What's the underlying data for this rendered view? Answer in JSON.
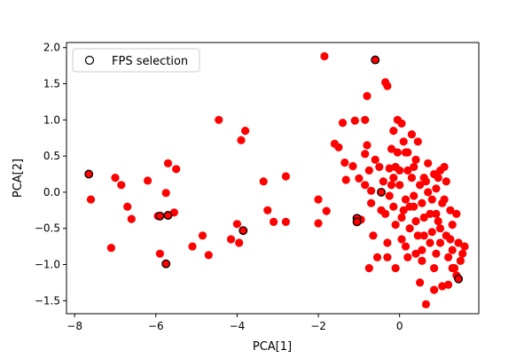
{
  "chart_data": {
    "type": "scatter",
    "title": "",
    "xlabel": "PCA[1]",
    "ylabel": "PCA[2]",
    "xlim": [
      -8.2,
      1.95
    ],
    "ylim": [
      -1.68,
      2.07
    ],
    "xticks": [
      -8,
      -6,
      -4,
      -2,
      0
    ],
    "xtick_labels": [
      "−8",
      "−6",
      "−4",
      "−2",
      "0"
    ],
    "yticks": [
      -1.5,
      -1.0,
      -0.5,
      0.0,
      0.5,
      1.0,
      1.5,
      2.0
    ],
    "ytick_labels": [
      "−1.5",
      "−1.0",
      "−0.5",
      "0.0",
      "0.5",
      "1.0",
      "1.5",
      "2.0"
    ],
    "grid": false,
    "legend": {
      "position": "upper-left"
    },
    "series": [
      {
        "marker": "filled-circle",
        "color": "#ff0000",
        "points": [
          [
            -7.6,
            -0.1
          ],
          [
            -7.0,
            0.2
          ],
          [
            -6.85,
            0.1
          ],
          [
            -6.7,
            -0.2
          ],
          [
            -6.6,
            -0.37
          ],
          [
            -7.1,
            -0.77
          ],
          [
            -6.2,
            0.16
          ],
          [
            -5.95,
            -0.33
          ],
          [
            -5.75,
            -0.01
          ],
          [
            -5.7,
            0.4
          ],
          [
            -5.5,
            0.32
          ],
          [
            -5.55,
            -0.28
          ],
          [
            -5.9,
            -0.85
          ],
          [
            -5.1,
            -0.75
          ],
          [
            -4.85,
            -0.6
          ],
          [
            -4.7,
            -0.87
          ],
          [
            -4.45,
            1.0
          ],
          [
            -4.15,
            -0.65
          ],
          [
            -3.95,
            -0.7
          ],
          [
            -3.9,
            0.72
          ],
          [
            -3.8,
            0.85
          ],
          [
            -4.0,
            -0.44
          ],
          [
            -3.35,
            0.15
          ],
          [
            -3.25,
            -0.25
          ],
          [
            -3.1,
            -0.41
          ],
          [
            -2.8,
            -0.41
          ],
          [
            -2.8,
            0.22
          ],
          [
            -2.0,
            -0.1
          ],
          [
            -2.0,
            -0.43
          ],
          [
            -1.85,
            1.88
          ],
          [
            -1.8,
            -0.26
          ],
          [
            -1.6,
            0.67
          ],
          [
            -1.5,
            0.62
          ],
          [
            -1.4,
            0.96
          ],
          [
            -1.35,
            0.41
          ],
          [
            -1.32,
            0.17
          ],
          [
            -1.15,
            0.36
          ],
          [
            -1.1,
            0.99
          ],
          [
            -1.0,
            0.19
          ],
          [
            -0.95,
            -0.38
          ],
          [
            -0.85,
            0.1
          ],
          [
            -0.85,
            0.53
          ],
          [
            -0.85,
            1.0
          ],
          [
            -0.8,
            0.65
          ],
          [
            -0.75,
            0.3
          ],
          [
            -0.7,
            0.02
          ],
          [
            -0.6,
            0.45
          ],
          [
            -0.8,
            1.33
          ],
          [
            -0.75,
            -1.05
          ],
          [
            -0.7,
            -0.15
          ],
          [
            -0.65,
            -0.6
          ],
          [
            -0.55,
            -0.9
          ],
          [
            -0.35,
            1.52
          ],
          [
            -0.3,
            1.47
          ],
          [
            -0.4,
            0.15
          ],
          [
            -0.35,
            -0.3
          ],
          [
            -0.3,
            -0.7
          ],
          [
            -0.3,
            -0.9
          ],
          [
            -0.25,
            0.33
          ],
          [
            -0.2,
            0.6
          ],
          [
            -0.15,
            0.85
          ],
          [
            -0.15,
            -0.2
          ],
          [
            -0.1,
            -0.45
          ],
          [
            -0.1,
            -1.05
          ],
          [
            -0.05,
            1.0
          ],
          [
            0.0,
            0.1
          ],
          [
            0.05,
            -0.65
          ],
          [
            0.05,
            0.95
          ],
          [
            0.1,
            -0.25
          ],
          [
            0.15,
            0.55
          ],
          [
            0.2,
            0.3
          ],
          [
            0.2,
            -0.9
          ],
          [
            0.25,
            -0.5
          ],
          [
            0.3,
            0.8
          ],
          [
            0.35,
            -0.05
          ],
          [
            0.35,
            -0.2
          ],
          [
            0.4,
            -0.4
          ],
          [
            0.45,
            0.7
          ],
          [
            0.5,
            0.1
          ],
          [
            0.5,
            -1.25
          ],
          [
            0.55,
            -0.8
          ],
          [
            0.6,
            0.2
          ],
          [
            0.6,
            -0.6
          ],
          [
            0.65,
            -1.55
          ],
          [
            0.7,
            0.4
          ],
          [
            0.75,
            -0.3
          ],
          [
            0.8,
            -0.1
          ],
          [
            0.8,
            -0.55
          ],
          [
            0.85,
            0.25
          ],
          [
            0.85,
            -1.35
          ],
          [
            0.9,
            0.05
          ],
          [
            0.9,
            -0.85
          ],
          [
            0.95,
            -0.4
          ],
          [
            1.0,
            0.3
          ],
          [
            1.0,
            -0.7
          ],
          [
            1.05,
            -1.3
          ],
          [
            1.05,
            -0.15
          ],
          [
            1.1,
            0.35
          ],
          [
            1.15,
            -0.6
          ],
          [
            1.2,
            -0.9
          ],
          [
            1.2,
            -1.28
          ],
          [
            1.25,
            -0.25
          ],
          [
            1.3,
            -0.45
          ],
          [
            1.3,
            -0.8
          ],
          [
            1.35,
            -1.05
          ],
          [
            1.4,
            -1.15
          ],
          [
            1.45,
            -0.7
          ],
          [
            1.5,
            -0.95
          ],
          [
            1.55,
            -0.85
          ],
          [
            1.6,
            -0.75
          ],
          [
            1.15,
            0.15
          ],
          [
            0.95,
            0.2
          ],
          [
            0.7,
            0.0
          ],
          [
            0.55,
            -0.15
          ],
          [
            0.3,
            0.2
          ],
          [
            0.2,
            0.55
          ],
          [
            0.1,
            0.7
          ],
          [
            -0.05,
            0.55
          ],
          [
            0.0,
            0.3
          ],
          [
            -0.2,
            0.1
          ],
          [
            0.4,
            0.45
          ],
          [
            0.6,
            -0.35
          ],
          [
            0.75,
            -0.7
          ],
          [
            1.0,
            -0.5
          ],
          [
            1.25,
            -0.65
          ],
          [
            0.45,
            -0.6
          ],
          [
            0.25,
            -0.2
          ],
          [
            0.05,
            -0.35
          ],
          [
            -0.25,
            -0.05
          ],
          [
            -0.15,
            0.2
          ],
          [
            -0.5,
            0.35
          ],
          [
            -0.45,
            -0.25
          ],
          [
            0.9,
            -0.3
          ],
          [
            1.1,
            -0.1
          ],
          [
            0.65,
            0.15
          ],
          [
            0.35,
            0.35
          ],
          [
            0.15,
            -0.1
          ],
          [
            -0.1,
            0.35
          ],
          [
            0.55,
            -0.95
          ],
          [
            0.85,
            -1.05
          ],
          [
            1.3,
            -1.05
          ],
          [
            0.15,
            -0.75
          ],
          [
            0.4,
            -0.85
          ],
          [
            1.4,
            -0.3
          ]
        ]
      },
      {
        "name": "FPS selection",
        "marker": "open-circle",
        "color": "#000000",
        "points": [
          [
            -7.65,
            0.25
          ],
          [
            -5.9,
            -0.33
          ],
          [
            -5.7,
            -0.32
          ],
          [
            -5.75,
            -0.99
          ],
          [
            -3.85,
            -0.53
          ],
          [
            -1.05,
            -0.36
          ],
          [
            -1.05,
            -0.41
          ],
          [
            -0.6,
            1.83
          ],
          [
            -0.45,
            0.0
          ],
          [
            1.45,
            -1.2
          ]
        ]
      }
    ]
  }
}
